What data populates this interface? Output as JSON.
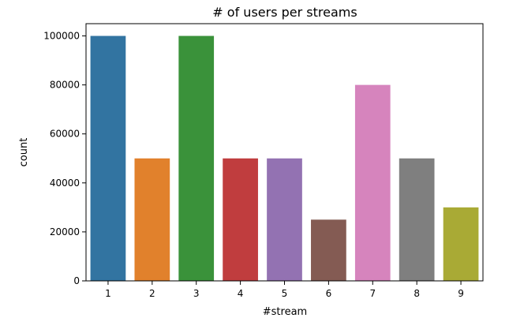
{
  "chart_data": {
    "type": "bar",
    "title": "# of users per streams",
    "xlabel": "#stream",
    "ylabel": "count",
    "categories": [
      "1",
      "2",
      "3",
      "4",
      "5",
      "6",
      "7",
      "8",
      "9"
    ],
    "values": [
      100000,
      50000,
      100000,
      50000,
      50000,
      25000,
      80000,
      50000,
      30000
    ],
    "colors": [
      "#3274a1",
      "#e1812c",
      "#3a923a",
      "#c03d3e",
      "#9372b2",
      "#845b53",
      "#d684bd",
      "#7f7f7f",
      "#a9aa35"
    ],
    "ylim": [
      0,
      105000
    ],
    "yticks": [
      0,
      20000,
      40000,
      60000,
      80000,
      100000
    ],
    "ytick_labels": [
      "0",
      "20000",
      "40000",
      "60000",
      "80000",
      "100000"
    ],
    "grid": false,
    "legend": "none"
  }
}
